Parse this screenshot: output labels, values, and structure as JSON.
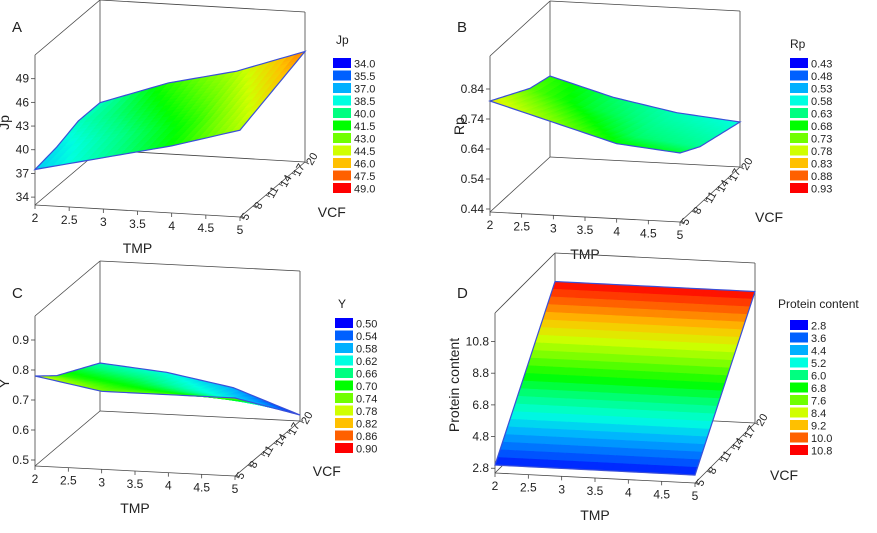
{
  "color_scale": [
    "#0000ff",
    "#0060ff",
    "#00b0ff",
    "#00ffe0",
    "#00ff80",
    "#00ff00",
    "#70ff00",
    "#d0ff00",
    "#ffc000",
    "#ff6000",
    "#ff0000"
  ],
  "chart_data": [
    {
      "panel": "A",
      "type": "surface3d",
      "xlabel": "TMP",
      "ylabel": "VCF",
      "zlabel": "Jp",
      "x": [
        2,
        3,
        4,
        5
      ],
      "y": [
        5,
        10,
        15,
        20
      ],
      "z": [
        [
          37.5,
          39.5,
          41.5,
          44
        ],
        [
          38,
          40,
          42,
          45
        ],
        [
          39,
          41,
          43,
          46
        ],
        [
          39,
          42,
          44,
          47
        ]
      ],
      "xticks": [
        "2",
        "2.5",
        "3",
        "3.5",
        "4",
        "4.5",
        "5"
      ],
      "yticks": [
        "5",
        "8",
        "11",
        "14",
        "17",
        "20"
      ],
      "zticks": [
        "34",
        "37",
        "40",
        "43",
        "46",
        "49"
      ],
      "zlim": [
        33,
        52
      ],
      "legend_title": "Jp",
      "legend": [
        "34.0",
        "35.5",
        "37.0",
        "38.5",
        "40.0",
        "41.5",
        "43.0",
        "44.5",
        "46.0",
        "47.5",
        "49.0"
      ],
      "legend_position": "right"
    },
    {
      "panel": "B",
      "type": "surface3d",
      "xlabel": "TMP",
      "ylabel": "VCF",
      "zlabel": "Rp",
      "x": [
        2,
        3,
        4,
        5
      ],
      "y": [
        5,
        10,
        15,
        20
      ],
      "z": [
        [
          0.8,
          0.74,
          0.68,
          0.66
        ],
        [
          0.76,
          0.7,
          0.64,
          0.62
        ],
        [
          0.72,
          0.66,
          0.62,
          0.6
        ],
        [
          0.7,
          0.64,
          0.6,
          0.58
        ]
      ],
      "xticks": [
        "2",
        "2.5",
        "3",
        "3.5",
        "4",
        "4.5",
        "5"
      ],
      "yticks": [
        "5",
        "8",
        "11",
        "14",
        "17",
        "20"
      ],
      "zticks": [
        "0.44",
        "0.54",
        "0.64",
        "0.74",
        "0.84"
      ],
      "zlim": [
        0.43,
        0.95
      ],
      "legend_title": "Rp",
      "legend": [
        "0.43",
        "0.48",
        "0.53",
        "0.58",
        "0.63",
        "0.68",
        "0.73",
        "0.78",
        "0.83",
        "0.88",
        "0.93"
      ],
      "legend_position": "right"
    },
    {
      "panel": "C",
      "type": "surface3d",
      "xlabel": "TMP",
      "ylabel": "VCF",
      "zlabel": "Y",
      "x": [
        2,
        3,
        4,
        5
      ],
      "y": [
        5,
        10,
        15,
        20
      ],
      "z": [
        [
          0.78,
          0.74,
          0.74,
          0.74
        ],
        [
          0.72,
          0.7,
          0.68,
          0.66
        ],
        [
          0.68,
          0.66,
          0.62,
          0.58
        ],
        [
          0.64,
          0.62,
          0.58,
          0.5
        ]
      ],
      "xticks": [
        "2",
        "2.5",
        "3",
        "3.5",
        "4",
        "4.5",
        "5"
      ],
      "yticks": [
        "5",
        "8",
        "11",
        "14",
        "17",
        "20"
      ],
      "zticks": [
        "0.5",
        "0.6",
        "0.7",
        "0.8",
        "0.9"
      ],
      "zlim": [
        0.48,
        0.98
      ],
      "legend_title": "Y",
      "legend": [
        "0.50",
        "0.54",
        "0.58",
        "0.62",
        "0.66",
        "0.70",
        "0.74",
        "0.78",
        "0.82",
        "0.86",
        "0.90"
      ],
      "legend_position": "right"
    },
    {
      "panel": "D",
      "type": "surface3d",
      "xlabel": "TMP",
      "ylabel": "VCF",
      "zlabel": "Protein content",
      "x": [
        2,
        3,
        4,
        5
      ],
      "y": [
        5,
        10,
        15,
        20
      ],
      "z": [
        [
          3.0,
          3.0,
          3.0,
          3.0
        ],
        [
          5.6,
          5.6,
          5.6,
          5.6
        ],
        [
          8.2,
          8.2,
          8.2,
          8.2
        ],
        [
          10.8,
          10.8,
          10.8,
          10.8
        ]
      ],
      "xticks": [
        "2",
        "2.5",
        "3",
        "3.5",
        "4",
        "4.5",
        "5"
      ],
      "yticks": [
        "5",
        "8",
        "11",
        "14",
        "17",
        "20"
      ],
      "zticks": [
        "2.8",
        "4.8",
        "6.8",
        "8.8",
        "10.8"
      ],
      "zlim": [
        2.5,
        12.6
      ],
      "legend_title": "Protein content",
      "legend": [
        "2.8",
        "3.6",
        "4.4",
        "5.2",
        "6.0",
        "6.8",
        "7.6",
        "8.4",
        "9.2",
        "10.0",
        "10.8"
      ],
      "legend_position": "right"
    }
  ]
}
